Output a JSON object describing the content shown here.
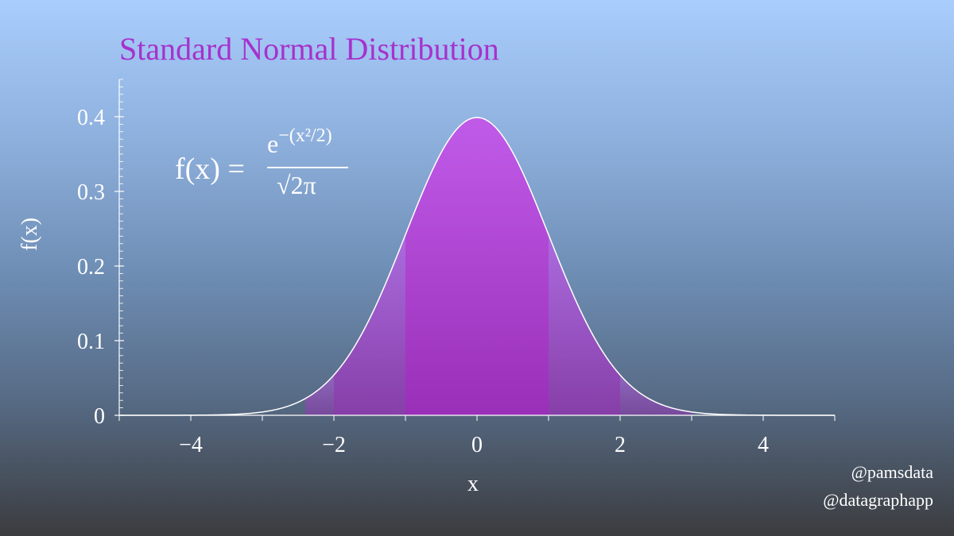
{
  "title": "Standard Normal Distribution",
  "formula": {
    "lhs": "f(x) =",
    "numerator_base": "e",
    "numerator_exponent": "−(x²/2)",
    "denominator": "√2π"
  },
  "credits": [
    "@pamsdata",
    "@datagraphapp"
  ],
  "colors": {
    "title": "#a632cc",
    "fill_top": "#c05be9",
    "fill_bottom": "#9a2fb8",
    "curve": "#ffffff"
  },
  "chart_data": {
    "type": "area",
    "xlabel": "x",
    "ylabel": "f(x)",
    "xlim": [
      -5,
      5
    ],
    "ylim": [
      0,
      0.45
    ],
    "x_ticks": [
      -4,
      -2,
      0,
      2,
      4
    ],
    "x_tick_labels": [
      "−4",
      "−2",
      "0",
      "2",
      "4"
    ],
    "y_ticks": [
      0,
      0.1,
      0.2,
      0.3,
      0.4
    ],
    "y_tick_labels": [
      "0",
      "0.1",
      "0.2",
      "0.3",
      "0.4"
    ],
    "grid": false,
    "series": [
      {
        "function": "standard normal pdf",
        "mean": 0,
        "sd": 1,
        "shaded_bands": [
          {
            "from": -1,
            "to": 1,
            "opacity": 1.0
          },
          {
            "from": -2,
            "to": -1,
            "opacity": 0.72
          },
          {
            "from": 1,
            "to": 2,
            "opacity": 0.72
          },
          {
            "from": -2.4,
            "to": -2,
            "opacity": 0.5
          },
          {
            "from": 2,
            "to": 3,
            "opacity": 0.5
          }
        ]
      }
    ]
  }
}
